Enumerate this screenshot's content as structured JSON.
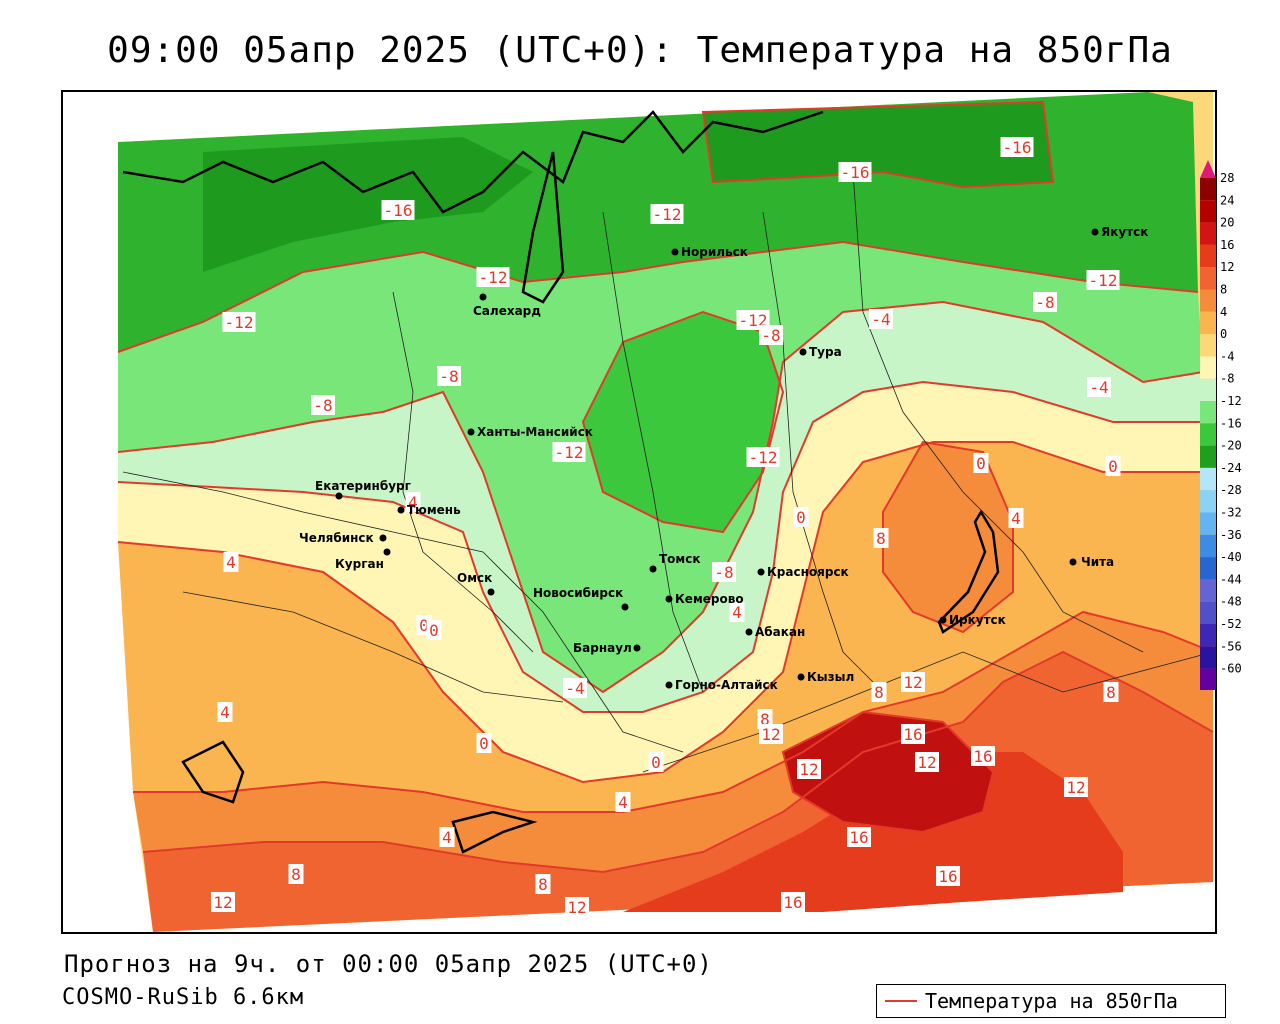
{
  "title": "09:00 05апр 2025 (UTC+0): Температура на 850гПа",
  "footer": {
    "forecast": "Прогноз на 9ч. от 00:00 05апр 2025 (UTC+0)",
    "model": "COSMO-RuSib 6.6км"
  },
  "legend": {
    "line_label": "Температура на 850гПа",
    "line_color": "#e23a2a"
  },
  "color_scale": {
    "labels": [
      "28",
      "24",
      "20",
      "16",
      "12",
      "8",
      "4",
      "0",
      "-4",
      "-8",
      "-12",
      "-16",
      "-20",
      "-24",
      "-28",
      "-32",
      "-36",
      "-40",
      "-44",
      "-48",
      "-52",
      "-56",
      "-60"
    ],
    "colors": [
      "#8c0000",
      "#b40000",
      "#d21414",
      "#e63c1e",
      "#f06432",
      "#f58c3c",
      "#fab450",
      "#fdd878",
      "#fff5b4",
      "#c8f5c8",
      "#78e678",
      "#3cc83c",
      "#1ea01e",
      "#b4e6fa",
      "#8cd2f5",
      "#64b4f0",
      "#3c8ce6",
      "#2864d2",
      "#6464d2",
      "#5050c8",
      "#3c28b4",
      "#2814a0",
      "#6400a0"
    ]
  },
  "cities": [
    {
      "name": "Якутск"
    },
    {
      "name": "Норильск"
    },
    {
      "name": "Салехард"
    },
    {
      "name": "Тура"
    },
    {
      "name": "Ханты-Мансийск"
    },
    {
      "name": "Екатеринбург"
    },
    {
      "name": "Тюмень"
    },
    {
      "name": "Челябинск"
    },
    {
      "name": "Курган"
    },
    {
      "name": "Омск"
    },
    {
      "name": "Новосибирск"
    },
    {
      "name": "Томск"
    },
    {
      "name": "Кемерово"
    },
    {
      "name": "Красноярск"
    },
    {
      "name": "Абакан"
    },
    {
      "name": "Барнаул"
    },
    {
      "name": "Горно-Алтайск"
    },
    {
      "name": "Кызыл"
    },
    {
      "name": "Иркутск"
    },
    {
      "name": "Чита"
    }
  ],
  "isotherm_labels": [
    "-16",
    "-16",
    "-16",
    "-12",
    "-12",
    "-12",
    "-12",
    "-12",
    "-12",
    "-12",
    "-8",
    "-8",
    "-8",
    "-8",
    "-8",
    "-4",
    "-4",
    "-4",
    "0",
    "0",
    "0",
    "0",
    "0",
    "0",
    "0",
    "4",
    "4",
    "4",
    "4",
    "4",
    "4",
    "4",
    "8",
    "8",
    "8",
    "8",
    "8",
    "8",
    "12",
    "12",
    "12",
    "12",
    "12",
    "12",
    "12",
    "16",
    "16",
    "16",
    "16",
    "16",
    "16"
  ]
}
